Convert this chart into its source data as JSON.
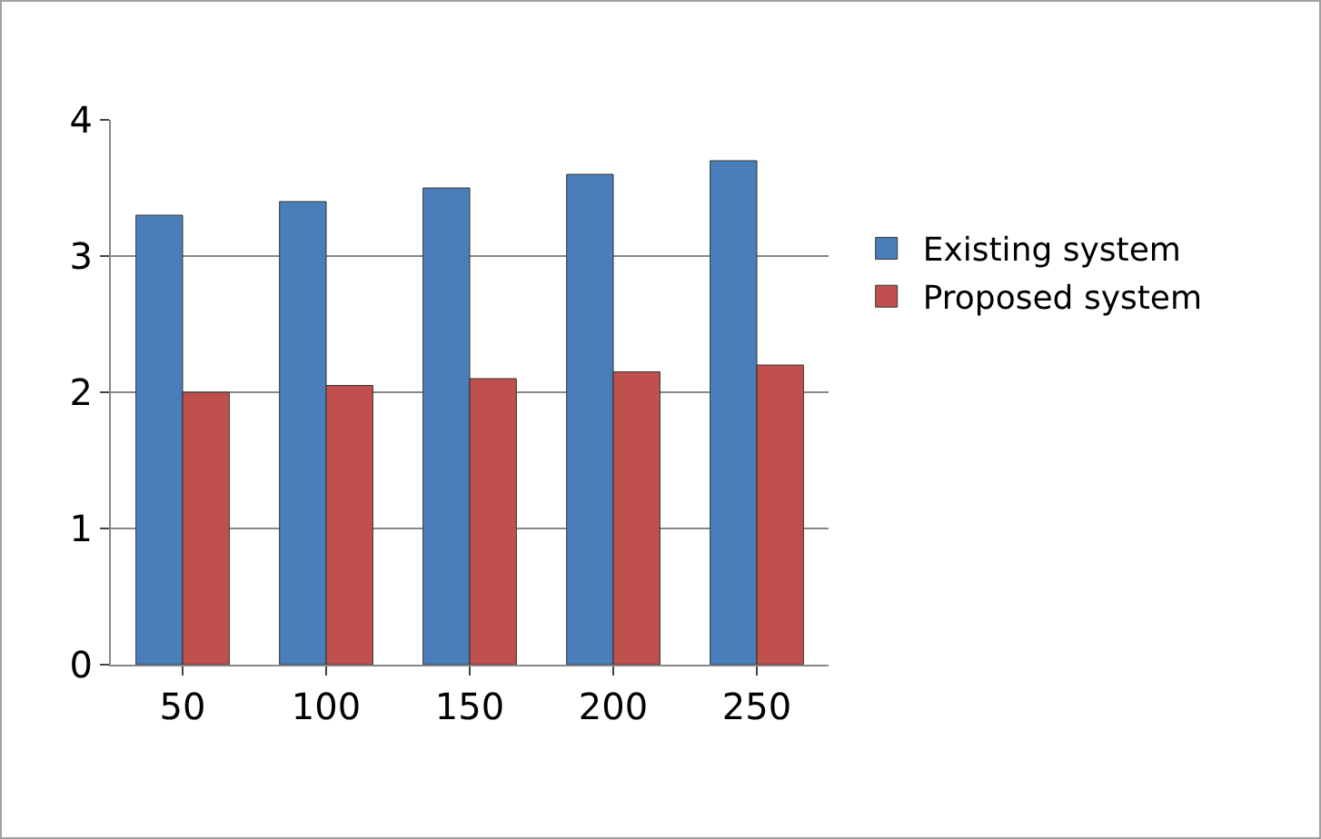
{
  "chart_data": {
    "type": "bar",
    "categories": [
      "50",
      "100",
      "150",
      "200",
      "250"
    ],
    "series": [
      {
        "name": "Existing system",
        "color": "#4a7ebb",
        "values": [
          3.3,
          3.4,
          3.5,
          3.6,
          3.7
        ]
      },
      {
        "name": "Proposed system",
        "color": "#c0504d",
        "values": [
          2.0,
          2.05,
          2.1,
          2.15,
          2.2
        ]
      }
    ],
    "ylim": [
      0,
      4
    ],
    "yticks": [
      0,
      1,
      2,
      3,
      4
    ],
    "grid": "y",
    "legend": "right"
  }
}
